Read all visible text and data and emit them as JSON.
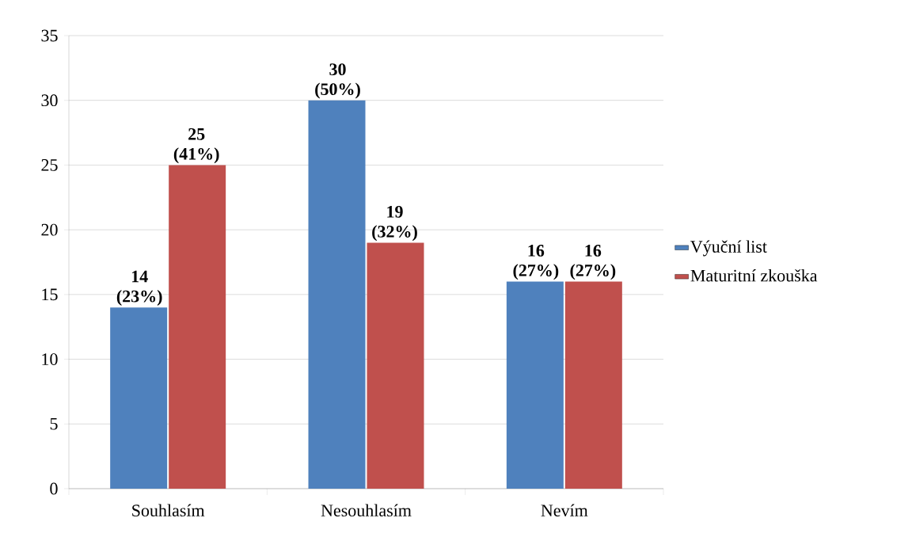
{
  "chart_data": {
    "type": "bar",
    "categories": [
      "Souhlasím",
      "Nesouhlasím",
      "Nevím"
    ],
    "series": [
      {
        "name": "Výuční list",
        "color": "#4f81bd",
        "values": [
          14,
          30,
          16
        ],
        "value_labels": [
          "14 (23%)",
          "30 (50%)",
          "16 (27%)"
        ]
      },
      {
        "name": "Maturitní zkouška",
        "color": "#c0504d",
        "values": [
          25,
          19,
          16
        ],
        "value_labels": [
          "25 (41%)",
          "19 (32%)",
          "16 (27%)"
        ]
      }
    ],
    "ylim": [
      0,
      35
    ],
    "yticks": [
      0,
      5,
      10,
      15,
      20,
      25,
      30,
      35
    ],
    "grid": "y",
    "legend": "right"
  }
}
